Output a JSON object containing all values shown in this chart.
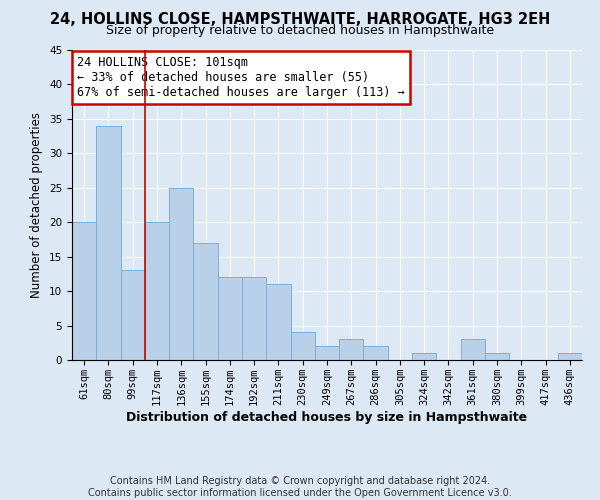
{
  "title": "24, HOLLINS CLOSE, HAMPSTHWAITE, HARROGATE, HG3 2EH",
  "subtitle": "Size of property relative to detached houses in Hampsthwaite",
  "xlabel": "Distribution of detached houses by size in Hampsthwaite",
  "ylabel": "Number of detached properties",
  "bar_labels": [
    "61sqm",
    "80sqm",
    "99sqm",
    "117sqm",
    "136sqm",
    "155sqm",
    "174sqm",
    "192sqm",
    "211sqm",
    "230sqm",
    "249sqm",
    "267sqm",
    "286sqm",
    "305sqm",
    "324sqm",
    "342sqm",
    "361sqm",
    "380sqm",
    "399sqm",
    "417sqm",
    "436sqm"
  ],
  "bar_values": [
    20,
    34,
    13,
    20,
    25,
    17,
    12,
    12,
    11,
    4,
    2,
    3,
    2,
    0,
    1,
    0,
    3,
    1,
    0,
    0,
    1
  ],
  "bar_color": "#b8d0e8",
  "bar_edge_color": "#7aafd4",
  "vline_x_index": 2,
  "vline_color": "#cc0000",
  "ylim": [
    0,
    45
  ],
  "yticks": [
    0,
    5,
    10,
    15,
    20,
    25,
    30,
    35,
    40,
    45
  ],
  "annotation_title": "24 HOLLINS CLOSE: 101sqm",
  "annotation_line1": "← 33% of detached houses are smaller (55)",
  "annotation_line2": "67% of semi-detached houses are larger (113) →",
  "annotation_box_color": "#ffffff",
  "annotation_box_edge": "#cc0000",
  "footer_line1": "Contains HM Land Registry data © Crown copyright and database right 2024.",
  "footer_line2": "Contains public sector information licensed under the Open Government Licence v3.0.",
  "bg_color": "#dce8f4",
  "plot_bg_color": "#dce8f4",
  "grid_color": "#ffffff",
  "title_fontsize": 10.5,
  "subtitle_fontsize": 9,
  "xlabel_fontsize": 9,
  "ylabel_fontsize": 8.5,
  "tick_fontsize": 7.5,
  "annotation_fontsize": 8.5,
  "footer_fontsize": 7
}
